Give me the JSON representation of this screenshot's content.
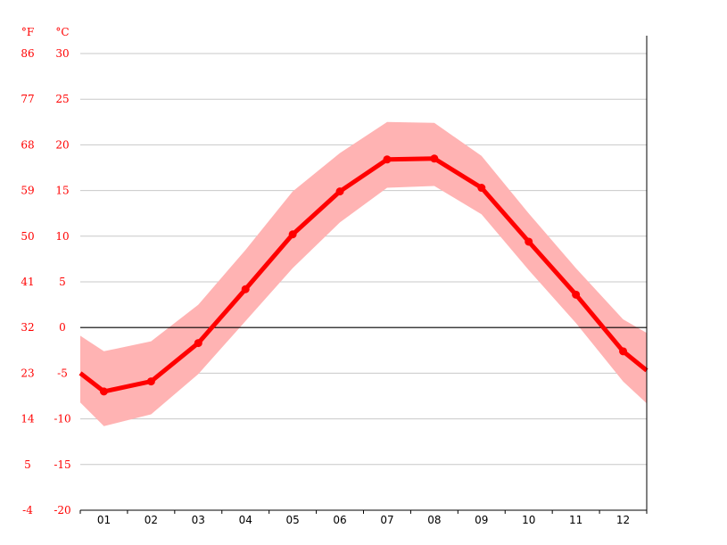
{
  "chart_data": {
    "type": "line",
    "units": {
      "left": "°F",
      "right": "°C"
    },
    "categories": [
      "01",
      "02",
      "03",
      "04",
      "05",
      "06",
      "07",
      "08",
      "09",
      "10",
      "11",
      "12"
    ],
    "series": [
      {
        "values": [
          -7.0,
          -5.9,
          -1.7,
          4.2,
          10.2,
          14.9,
          18.4,
          18.5,
          15.3,
          9.4,
          3.6,
          -2.6
        ]
      }
    ],
    "band_upper": [
      -2.6,
      -1.5,
      2.5,
      8.5,
      14.9,
      19.1,
      22.5,
      22.4,
      18.8,
      12.5,
      6.5,
      0.9
    ],
    "band_lower": [
      -10.8,
      -9.5,
      -5.1,
      0.7,
      6.5,
      11.5,
      15.3,
      15.5,
      12.4,
      6.3,
      0.5,
      -5.9
    ],
    "edge_start": {
      "value": -5.0,
      "upper": -0.9,
      "lower": -8.2
    },
    "edge_end": {
      "value": -4.7,
      "upper": -0.6,
      "lower": -8.3
    },
    "y_left_ticks": [
      "86",
      "77",
      "68",
      "59",
      "50",
      "41",
      "32",
      "23",
      "14",
      "5",
      "-4"
    ],
    "y_right_ticks": [
      "30",
      "25",
      "20",
      "15",
      "10",
      "5",
      "0",
      "-5",
      "-10",
      "-15",
      "-20"
    ],
    "ylim": [
      -20,
      30
    ],
    "grid": true,
    "zero_line": true,
    "colors": {
      "line": "#ff0000",
      "band": "#ffb3b3",
      "grid": "#c8c8c8",
      "zero": "#000000",
      "tick_label": "#ff0000"
    }
  }
}
